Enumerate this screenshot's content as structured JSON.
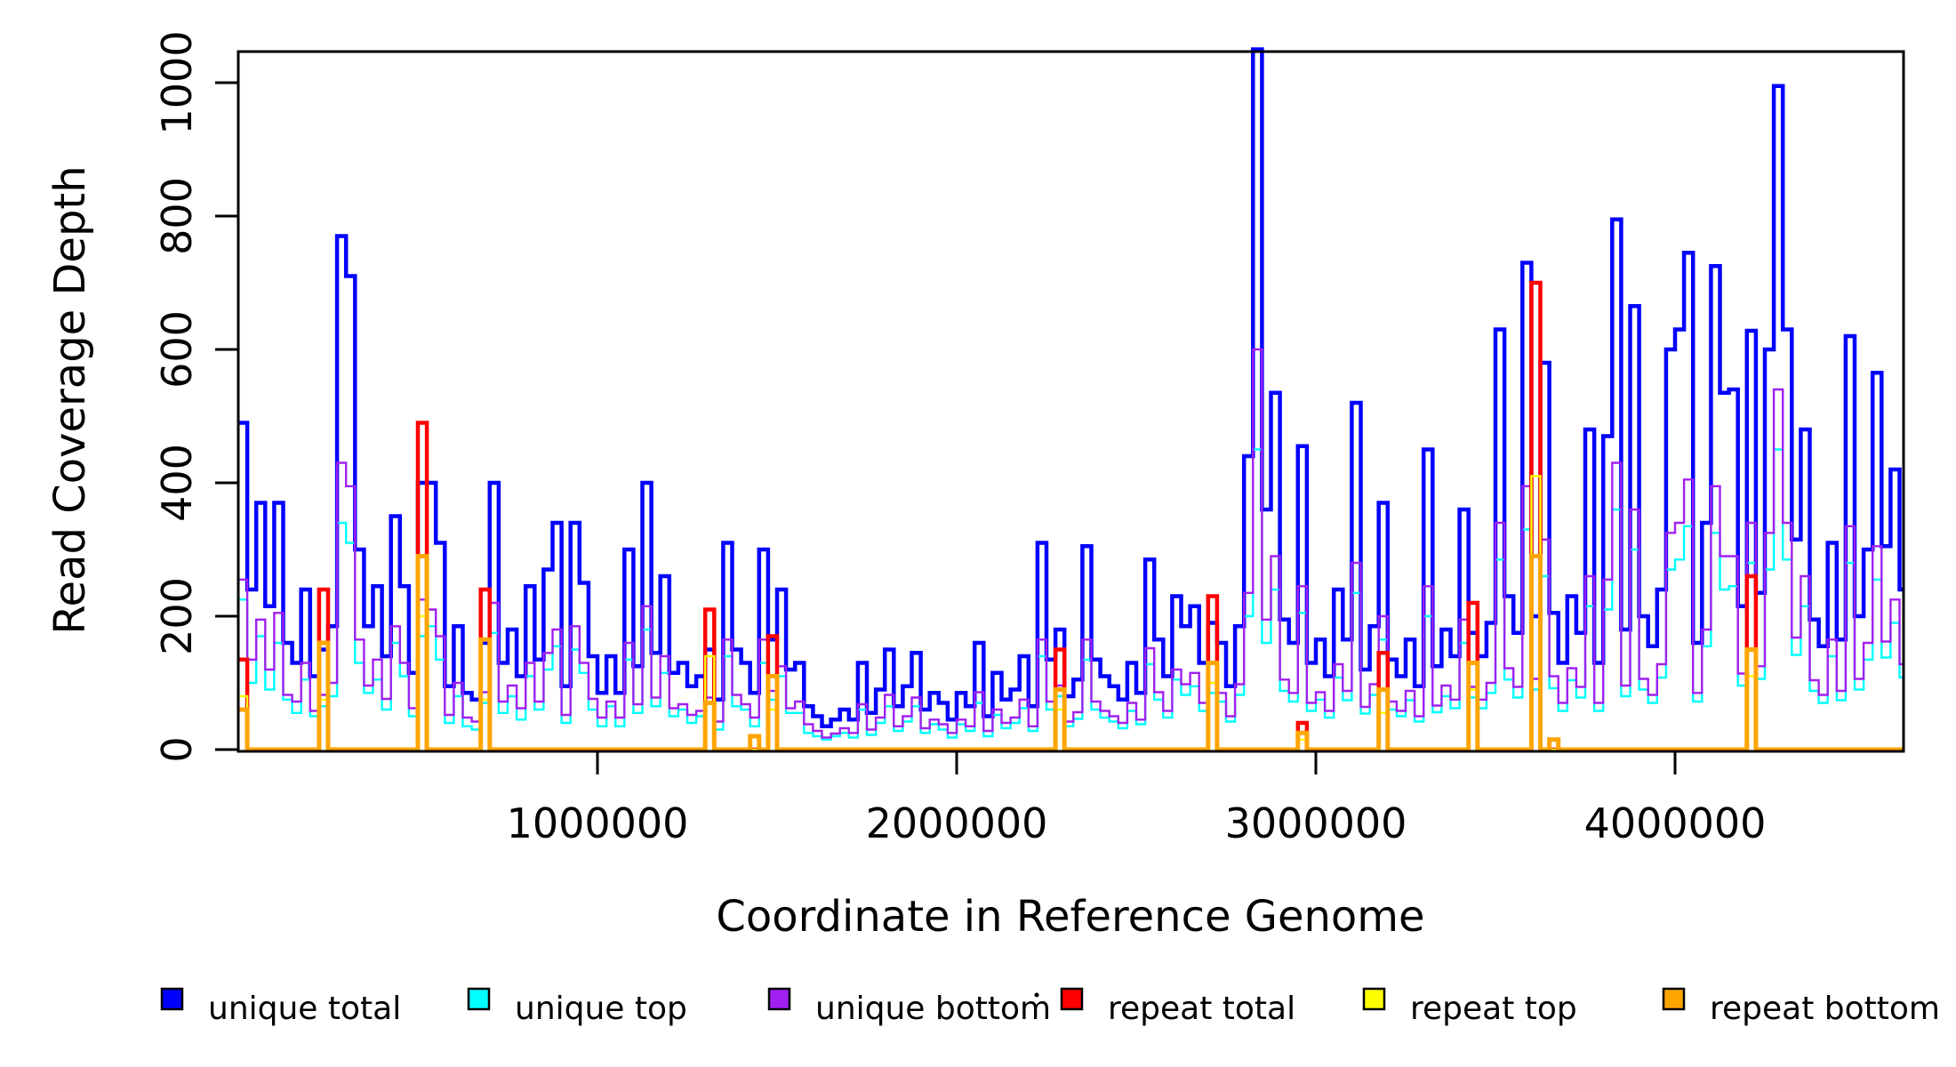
{
  "figure": {
    "background": "#ffffff",
    "frame_color": "#000000"
  },
  "axes": {
    "x": {
      "title": "Coordinate in Reference Genome",
      "ticks": [
        1000000,
        2000000,
        3000000,
        4000000
      ],
      "tick_labels": [
        "1000000",
        "2000000",
        "3000000",
        "4000000"
      ],
      "range_bp": [
        0,
        4636000
      ]
    },
    "y": {
      "title": "Read Coverage Depth",
      "ticks": [
        0,
        200,
        400,
        600,
        800,
        1000
      ],
      "tick_labels": [
        "0",
        "200",
        "400",
        "600",
        "800",
        "1000"
      ],
      "range": [
        0,
        1047
      ]
    }
  },
  "legend": {
    "items": [
      {
        "label": "unique total",
        "color": "#0000FF"
      },
      {
        "label": "unique top",
        "color": "#00FFFF"
      },
      {
        "label": "unique bottom",
        "color": "#A020F0"
      },
      {
        "label": "repeat total",
        "color": "#FF0000"
      },
      {
        "label": "repeat top",
        "color": "#FFFF00"
      },
      {
        "label": "repeat bottom",
        "color": "#FFA500"
      }
    ],
    "stray_mark": "."
  },
  "colors": {
    "unique_total": "#0000FF",
    "unique_top": "#00FFFF",
    "unique_bottom": "#A020F0",
    "repeat_total": "#FF0000",
    "repeat_top": "#FFFF00",
    "repeat_bottom": "#FFA500"
  },
  "chart_data": {
    "type": "line",
    "step_mode": "s",
    "title": "",
    "xlabel": "Coordinate in Reference Genome",
    "ylabel": "Read Coverage Depth",
    "xlim": [
      0,
      4636000
    ],
    "ylim": [
      0,
      1047
    ],
    "grid": false,
    "legend_position": "bottom",
    "x_start_bp": 0,
    "x_step_bp": 25000,
    "n_bins": 186,
    "series": [
      {
        "name": "unique total",
        "color": "#0000FF",
        "line_width": 4.5,
        "values": [
          490,
          240,
          370,
          215,
          370,
          160,
          130,
          240,
          110,
          150,
          185,
          770,
          710,
          300,
          185,
          245,
          140,
          350,
          245,
          115,
          400,
          400,
          310,
          95,
          185,
          85,
          75,
          160,
          400,
          130,
          180,
          110,
          245,
          135,
          270,
          340,
          95,
          340,
          250,
          140,
          85,
          140,
          85,
          300,
          125,
          400,
          145,
          260,
          115,
          130,
          95,
          110,
          150,
          75,
          310,
          150,
          130,
          85,
          300,
          165,
          240,
          120,
          130,
          65,
          50,
          35,
          45,
          60,
          45,
          130,
          55,
          90,
          150,
          65,
          95,
          145,
          60,
          85,
          70,
          45,
          85,
          65,
          160,
          50,
          115,
          75,
          90,
          140,
          65,
          310,
          135,
          180,
          80,
          105,
          305,
          135,
          110,
          95,
          75,
          130,
          85,
          285,
          165,
          110,
          230,
          185,
          215,
          130,
          190,
          160,
          95,
          185,
          440,
          1050,
          360,
          535,
          195,
          160,
          455,
          130,
          165,
          110,
          240,
          165,
          520,
          120,
          185,
          370,
          135,
          110,
          165,
          95,
          450,
          125,
          180,
          140,
          360,
          175,
          140,
          190,
          630,
          230,
          175,
          730,
          200,
          580,
          205,
          130,
          230,
          175,
          480,
          130,
          470,
          795,
          180,
          665,
          200,
          155,
          240,
          600,
          630,
          745,
          160,
          340,
          725,
          535,
          540,
          215,
          628,
          235,
          600,
          995,
          630,
          315,
          480,
          195,
          155,
          310,
          165,
          620,
          200,
          300,
          565,
          305,
          420,
          240
        ]
      },
      {
        "name": "unique top",
        "color": "#00FFFF",
        "line_width": 2.4,
        "values": [
          225,
          100,
          170,
          90,
          160,
          75,
          55,
          105,
          50,
          65,
          80,
          340,
          310,
          130,
          85,
          105,
          60,
          160,
          110,
          50,
          170,
          185,
          135,
          40,
          80,
          35,
          30,
          70,
          175,
          55,
          80,
          45,
          110,
          60,
          120,
          155,
          40,
          150,
          115,
          60,
          35,
          65,
          35,
          135,
          55,
          180,
          65,
          115,
          50,
          60,
          40,
          50,
          70,
          30,
          140,
          65,
          60,
          35,
          130,
          75,
          110,
          55,
          55,
          25,
          20,
          15,
          20,
          25,
          18,
          60,
          22,
          40,
          65,
          28,
          42,
          65,
          25,
          38,
          30,
          18,
          38,
          28,
          70,
          20,
          52,
          32,
          40,
          62,
          28,
          140,
          60,
          80,
          35,
          46,
          135,
          60,
          48,
          42,
          32,
          58,
          38,
          128,
          75,
          48,
          105,
          82,
          95,
          58,
          85,
          72,
          42,
          82,
          200,
          450,
          160,
          240,
          88,
          72,
          205,
          58,
          75,
          48,
          108,
          74,
          235,
          54,
          82,
          165,
          60,
          50,
          74,
          42,
          200,
          56,
          80,
          62,
          160,
          78,
          62,
          85,
          285,
          105,
          78,
          330,
          90,
          260,
          92,
          58,
          104,
          78,
          215,
          58,
          210,
          360,
          80,
          300,
          90,
          70,
          108,
          270,
          285,
          335,
          72,
          155,
          325,
          240,
          245,
          96,
          280,
          106,
          270,
          450,
          285,
          142,
          215,
          88,
          70,
          140,
          74,
          280,
          90,
          135,
          255,
          138,
          190,
          108
        ]
      },
      {
        "name": "unique bottom",
        "color": "#A020F0",
        "line_width": 2.4,
        "values": [
          255,
          135,
          195,
          120,
          205,
          82,
          72,
          130,
          58,
          82,
          100,
          430,
          395,
          165,
          96,
          135,
          76,
          185,
          130,
          62,
          225,
          210,
          170,
          52,
          100,
          48,
          42,
          86,
          220,
          72,
          96,
          62,
          130,
          72,
          145,
          180,
          52,
          185,
          130,
          76,
          48,
          72,
          48,
          160,
          68,
          215,
          78,
          140,
          62,
          68,
          52,
          58,
          78,
          42,
          165,
          82,
          68,
          48,
          165,
          88,
          125,
          62,
          72,
          38,
          28,
          18,
          24,
          32,
          25,
          68,
          30,
          48,
          82,
          35,
          50,
          78,
          32,
          45,
          38,
          25,
          45,
          35,
          86,
          28,
          60,
          40,
          48,
          75,
          35,
          165,
          72,
          96,
          42,
          56,
          165,
          72,
          58,
          50,
          40,
          70,
          45,
          152,
          86,
          58,
          120,
          98,
          115,
          70,
          100,
          85,
          50,
          98,
          235,
          600,
          195,
          290,
          105,
          85,
          245,
          70,
          86,
          58,
          128,
          88,
          280,
          64,
          98,
          200,
          72,
          58,
          88,
          50,
          245,
          66,
          96,
          75,
          195,
          94,
          75,
          100,
          340,
          122,
          94,
          395,
          106,
          315,
          110,
          70,
          122,
          94,
          260,
          70,
          255,
          430,
          96,
          360,
          106,
          82,
          128,
          325,
          340,
          405,
          85,
          180,
          395,
          290,
          290,
          114,
          340,
          125,
          325,
          540,
          340,
          168,
          260,
          104,
          82,
          165,
          88,
          335,
          106,
          160,
          305,
          162,
          225,
          128
        ]
      },
      {
        "name": "repeat total",
        "color": "#FF0000",
        "line_width": 4.5,
        "default_value": 0,
        "sparse_values": {
          "0": 135,
          "9": 240,
          "20": 490,
          "27": 240,
          "52": 210,
          "59": 170,
          "91": 150,
          "108": 230,
          "118": 40,
          "127": 145,
          "137": 220,
          "144": 700,
          "168": 260
        }
      },
      {
        "name": "repeat top",
        "color": "#FFFF00",
        "line_width": 2.4,
        "default_value": 0,
        "sparse_values": {
          "0": 80,
          "9": 75,
          "20": 200,
          "27": 75,
          "52": 140,
          "59": 60,
          "91": 60,
          "108": 100,
          "118": 15,
          "127": 55,
          "137": 90,
          "144": 410,
          "168": 110
        }
      },
      {
        "name": "repeat bottom",
        "color": "#FFA500",
        "line_width": 5,
        "default_value": 0,
        "sparse_values": {
          "0": 60,
          "9": 160,
          "20": 290,
          "27": 165,
          "52": 70,
          "57": 20,
          "59": 110,
          "91": 90,
          "108": 130,
          "118": 25,
          "127": 90,
          "137": 130,
          "144": 290,
          "146": 15,
          "168": 150
        }
      }
    ]
  }
}
